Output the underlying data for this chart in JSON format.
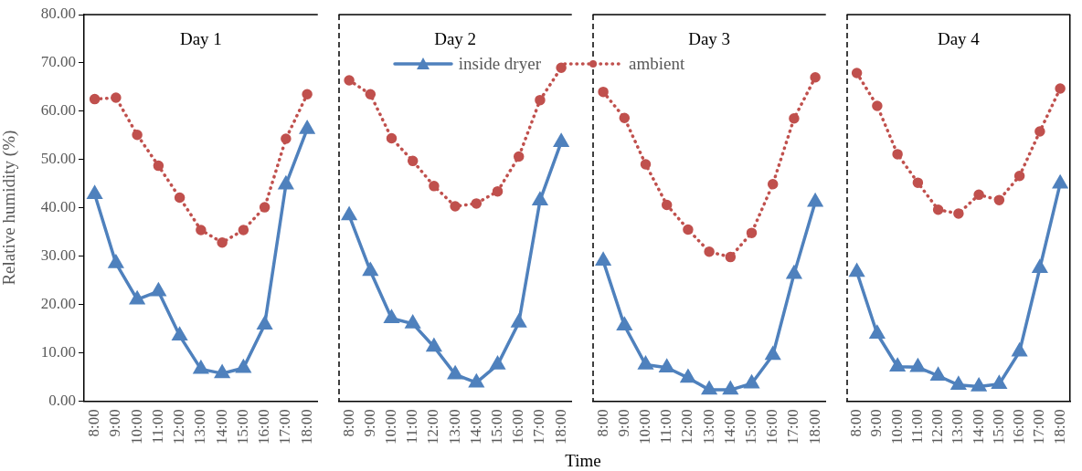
{
  "chart_data": [
    {
      "type": "line",
      "title": "Day 1",
      "ylabel": "Relative humidity (%)",
      "legend": "top",
      "categories": [
        "8:00",
        "9:00",
        "10:00",
        "11:00",
        "12:00",
        "13:00",
        "14:00",
        "15:00",
        "16:00",
        "17:00",
        "18:00"
      ],
      "series": [
        {
          "name": "inside dryer",
          "color": "#4f81bd",
          "marker": "triangle",
          "line_style": "solid",
          "values": [
            42.8,
            28.5,
            21.0,
            22.7,
            13.5,
            6.6,
            5.7,
            6.8,
            15.8,
            44.8,
            56.3
          ]
        },
        {
          "name": "ambient",
          "color": "#c0504d",
          "marker": "circle",
          "line_style": "dotted",
          "values": [
            62.5,
            62.8,
            55.1,
            48.7,
            42.1,
            35.4,
            32.8,
            35.4,
            40.1,
            54.3,
            63.5
          ]
        }
      ],
      "ylim": [
        0,
        80
      ],
      "yticks": [
        {
          "value": 0,
          "label": "0.00"
        },
        {
          "value": 10,
          "label": "10.00"
        },
        {
          "value": 20,
          "label": "20.00"
        },
        {
          "value": 30,
          "label": "30.00"
        },
        {
          "value": 40,
          "label": "40.00"
        },
        {
          "value": 50,
          "label": "50.00"
        },
        {
          "value": 60,
          "label": "60.00"
        },
        {
          "value": 70,
          "label": "70.00"
        },
        {
          "value": 80,
          "label": "80.00"
        }
      ],
      "grid": false
    },
    {
      "type": "line",
      "title": "Day 2",
      "xlabel": "Time",
      "categories": [
        "8:00",
        "9:00",
        "10:00",
        "11:00",
        "12:00",
        "13:00",
        "14:00",
        "15:00",
        "16:00",
        "17:00",
        "18:00"
      ],
      "series": [
        {
          "color": "#4f81bd",
          "marker": "triangle",
          "line_style": "solid",
          "values": [
            38.4,
            26.9,
            17.1,
            16.0,
            11.2,
            5.5,
            3.8,
            7.5,
            16.2,
            41.5,
            53.6
          ]
        },
        {
          "color": "#c0504d",
          "marker": "circle",
          "line_style": "dotted",
          "values": [
            66.4,
            63.5,
            54.4,
            49.7,
            44.5,
            40.3,
            40.9,
            43.4,
            50.6,
            62.3,
            69.0
          ]
        }
      ],
      "ylim": [
        0,
        80
      ],
      "tick_labels": "x",
      "grid": false
    },
    {
      "type": "line",
      "title": "Day 3",
      "categories": [
        "8:00",
        "9:00",
        "10:00",
        "11:00",
        "12:00",
        "13:00",
        "14:00",
        "15:00",
        "16:00",
        "17:00",
        "18:00"
      ],
      "series": [
        {
          "color": "#4f81bd",
          "marker": "triangle",
          "line_style": "solid",
          "values": [
            29.0,
            15.6,
            7.5,
            6.9,
            4.8,
            2.3,
            2.3,
            3.6,
            9.5,
            26.3,
            41.2
          ]
        },
        {
          "color": "#c0504d",
          "marker": "circle",
          "line_style": "dotted",
          "values": [
            64.0,
            58.6,
            49.0,
            40.6,
            35.5,
            30.9,
            29.8,
            34.8,
            44.9,
            58.5,
            67.0
          ]
        }
      ],
      "ylim": [
        0,
        80
      ],
      "tick_labels": "x",
      "grid": false
    },
    {
      "type": "line",
      "title": "Day 4",
      "categories": [
        "8:00",
        "9:00",
        "10:00",
        "11:00",
        "12:00",
        "13:00",
        "14:00",
        "15:00",
        "16:00",
        "17:00",
        "18:00"
      ],
      "series": [
        {
          "color": "#4f81bd",
          "marker": "triangle",
          "line_style": "solid",
          "values": [
            26.7,
            13.9,
            7.1,
            7.0,
            5.2,
            3.3,
            3.0,
            3.5,
            10.2,
            27.5,
            45.0
          ]
        },
        {
          "color": "#c0504d",
          "marker": "circle",
          "line_style": "dotted",
          "values": [
            67.9,
            61.1,
            51.1,
            45.2,
            39.6,
            38.8,
            42.7,
            41.6,
            46.6,
            55.8,
            64.7
          ]
        }
      ],
      "ylim": [
        0,
        80
      ],
      "tick_labels": "x",
      "grid": false
    }
  ]
}
